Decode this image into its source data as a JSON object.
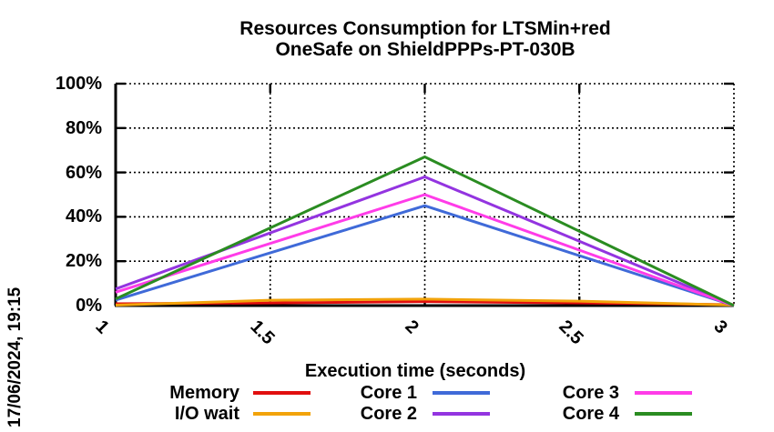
{
  "meta": {
    "timestamp": "17/06/2024, 19:15"
  },
  "title": {
    "line1": "Resources Consumption for LTSMin+red",
    "line2": "OneSafe on ShieldPPPs-PT-030B"
  },
  "axes": {
    "x": {
      "label": "Execution time (seconds)",
      "ticks": [
        {
          "label": "1",
          "value": 1
        },
        {
          "label": "1.5",
          "value": 1.5
        },
        {
          "label": "2",
          "value": 2
        },
        {
          "label": "2.5",
          "value": 2.5
        },
        {
          "label": "3",
          "value": 3
        }
      ]
    },
    "y": {
      "ticks": [
        {
          "label": "0%",
          "value": 0
        },
        {
          "label": "20%",
          "value": 20
        },
        {
          "label": "40%",
          "value": 40
        },
        {
          "label": "60%",
          "value": 60
        },
        {
          "label": "80%",
          "value": 80
        },
        {
          "label": "100%",
          "value": 100
        }
      ]
    }
  },
  "chart_data": {
    "type": "line",
    "title": "Resources Consumption for LTSMin+red OneSafe on ShieldPPPs-PT-030B",
    "xlabel": "Execution time (seconds)",
    "ylabel": "%",
    "xlim": [
      1,
      3
    ],
    "ylim": [
      0,
      100
    ],
    "grid": true,
    "legend_position": "bottom",
    "series": [
      {
        "name": "Memory",
        "color": "#e10e0e",
        "x": [
          1,
          1.5,
          2,
          2.5,
          3
        ],
        "values": [
          0.8,
          1.2,
          1.8,
          1.2,
          0.4
        ]
      },
      {
        "name": "I/O wait",
        "color": "#f2a30a",
        "x": [
          1,
          1.5,
          2,
          2.5,
          3
        ],
        "values": [
          0.2,
          2.4,
          2.9,
          2.0,
          0.2
        ]
      },
      {
        "name": "Core 1",
        "color": "#3f6ad8",
        "x": [
          1,
          2,
          3
        ],
        "values": [
          2.5,
          45,
          0
        ]
      },
      {
        "name": "Core 2",
        "color": "#9334e0",
        "x": [
          1,
          2,
          3
        ],
        "values": [
          7.5,
          58,
          0
        ]
      },
      {
        "name": "Core 3",
        "color": "#ff3ce8",
        "x": [
          1,
          2,
          3
        ],
        "values": [
          6,
          50,
          0
        ]
      },
      {
        "name": "Core 4",
        "color": "#2a8c21",
        "x": [
          1,
          2,
          3
        ],
        "values": [
          3,
          67,
          0
        ]
      }
    ]
  }
}
